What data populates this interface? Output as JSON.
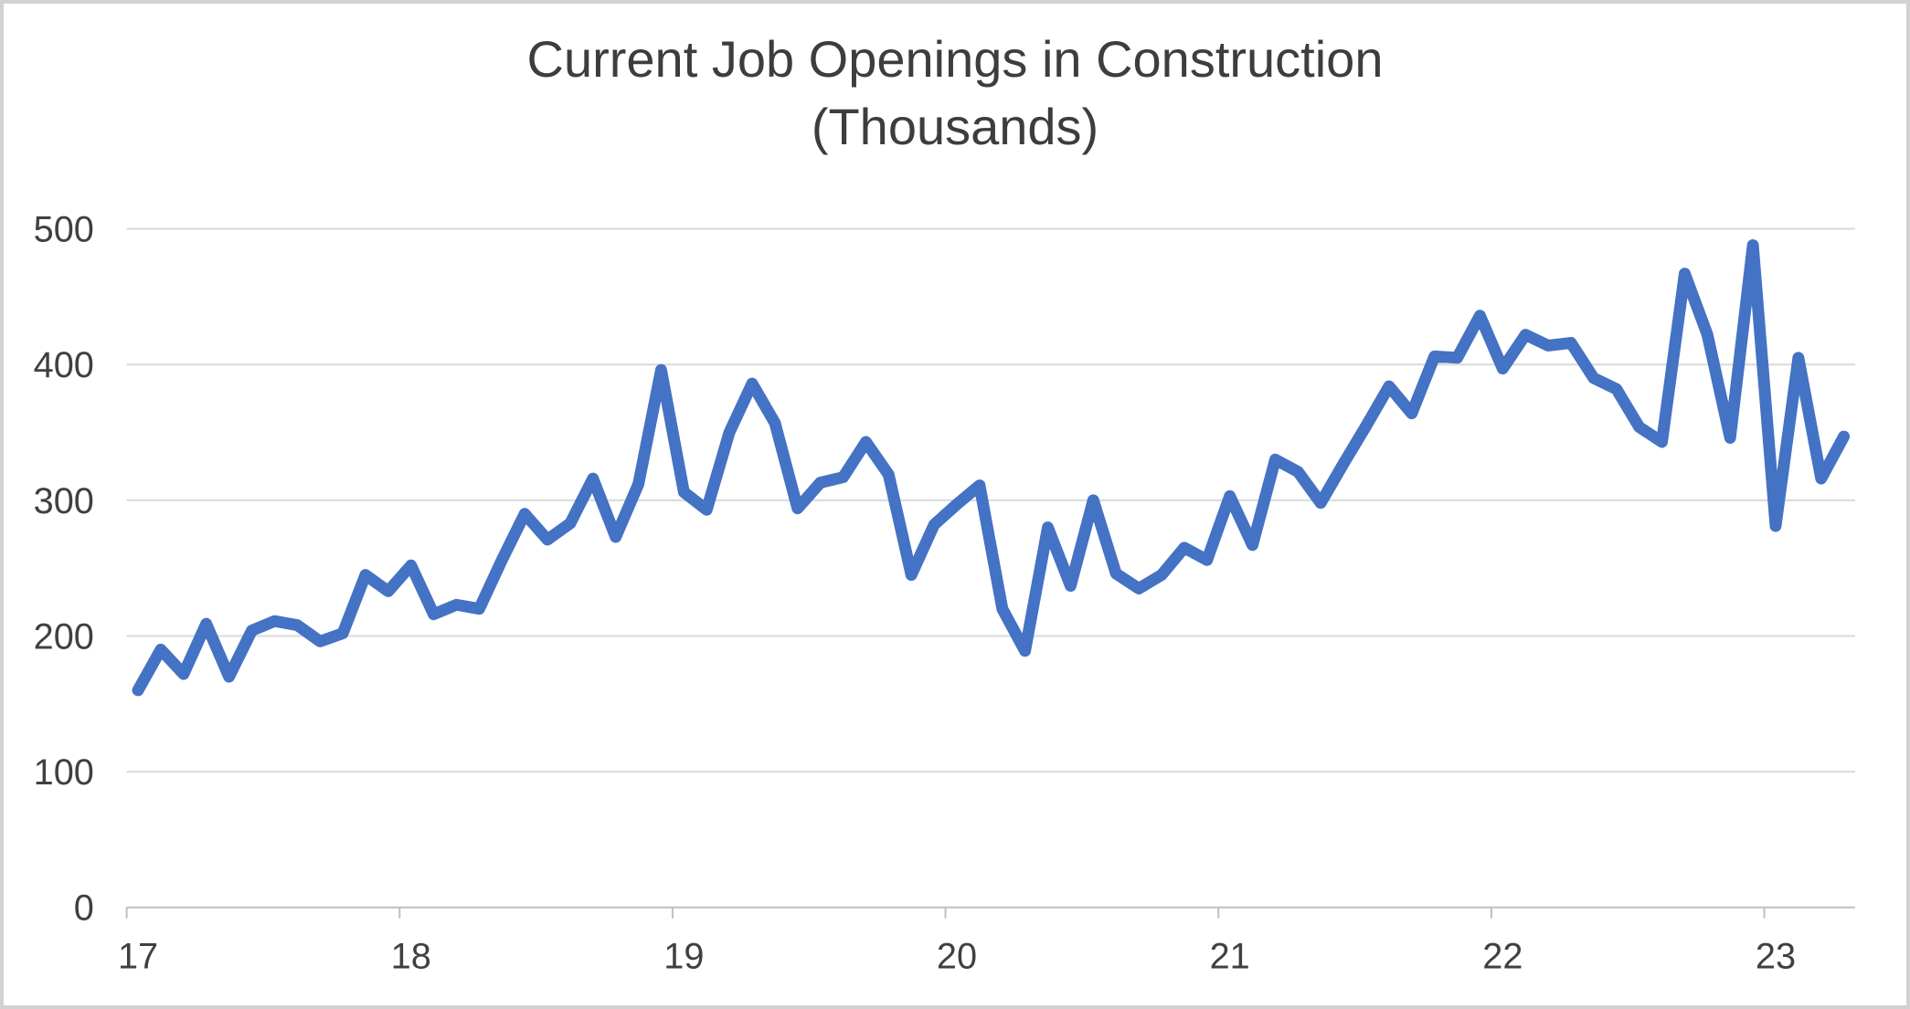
{
  "chart": {
    "title_line1": "Current Job Openings in Construction",
    "title_line2": "(Thousands)"
  },
  "chart_data": {
    "type": "line",
    "title": "Current Job Openings in Construction (Thousands)",
    "xlabel": "",
    "ylabel": "",
    "ylim": [
      0,
      500
    ],
    "y_ticks": [
      0,
      100,
      200,
      300,
      400,
      500
    ],
    "x_tick_labels": [
      "17",
      "18",
      "19",
      "20",
      "21",
      "22",
      "23"
    ],
    "grid": "horizontal",
    "legend_position": "none",
    "frequency": "monthly",
    "x": [
      "2017-01",
      "2017-02",
      "2017-03",
      "2017-04",
      "2017-05",
      "2017-06",
      "2017-07",
      "2017-08",
      "2017-09",
      "2017-10",
      "2017-11",
      "2017-12",
      "2018-01",
      "2018-02",
      "2018-03",
      "2018-04",
      "2018-05",
      "2018-06",
      "2018-07",
      "2018-08",
      "2018-09",
      "2018-10",
      "2018-11",
      "2018-12",
      "2019-01",
      "2019-02",
      "2019-03",
      "2019-04",
      "2019-05",
      "2019-06",
      "2019-07",
      "2019-08",
      "2019-09",
      "2019-10",
      "2019-11",
      "2019-12",
      "2020-01",
      "2020-02",
      "2020-03",
      "2020-04",
      "2020-05",
      "2020-06",
      "2020-07",
      "2020-08",
      "2020-09",
      "2020-10",
      "2020-11",
      "2020-12",
      "2021-01",
      "2021-02",
      "2021-03",
      "2021-04",
      "2021-05",
      "2021-06",
      "2021-07",
      "2021-08",
      "2021-09",
      "2021-10",
      "2021-11",
      "2021-12",
      "2022-01",
      "2022-02",
      "2022-03",
      "2022-04",
      "2022-05",
      "2022-06",
      "2022-07",
      "2022-08",
      "2022-09",
      "2022-10",
      "2022-11",
      "2022-12",
      "2023-01",
      "2023-02",
      "2023-03",
      "2023-04"
    ],
    "series": [
      {
        "name": "Job openings (thousands)",
        "values": [
          160,
          190,
          172,
          209,
          170,
          204,
          211,
          208,
          196,
          202,
          245,
          233,
          252,
          216,
          223,
          220,
          256,
          290,
          271,
          283,
          316,
          273,
          312,
          396,
          306,
          293,
          350,
          386,
          357,
          294,
          313,
          317,
          343,
          319,
          245,
          282,
          297,
          311,
          220,
          189,
          280,
          237,
          300,
          246,
          235,
          245,
          265,
          256,
          303,
          267,
          330,
          321,
          298,
          327,
          355,
          384,
          364,
          406,
          405,
          436,
          397,
          422,
          414,
          416,
          390,
          382,
          354,
          343,
          467,
          422,
          346,
          488,
          281,
          405,
          316,
          347
        ]
      }
    ],
    "colors": {
      "line": "#4472C4",
      "gridline": "#D9D9D9",
      "axis": "#BFBFBF",
      "text": "#404040",
      "title_text": "#3d3d3d",
      "border": "#d2d2d2",
      "background": "#ffffff"
    }
  }
}
